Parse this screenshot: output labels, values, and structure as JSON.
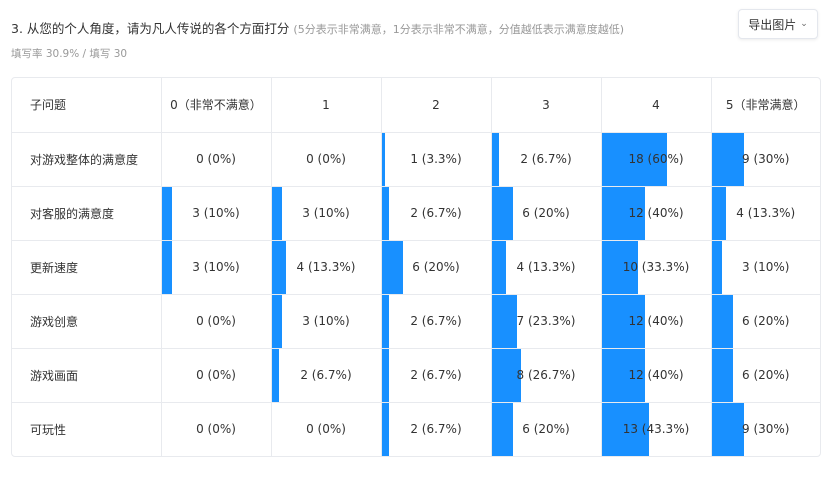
{
  "question": {
    "title": "3. 从您的个人角度，请为凡人传说的各个方面打分",
    "hint": "(5分表示非常满意，1分表示非常不满意，分值越低表示满意度越低)",
    "meta": "填写率 30.9% / 填写 30"
  },
  "export_button": {
    "label": "导出图片",
    "icon": "chevron-down-icon"
  },
  "colors": {
    "bar": "#1890ff",
    "border": "#e8eaee"
  },
  "table": {
    "header_label": "子问题",
    "columns": [
      "0（非常不满意）",
      "1",
      "2",
      "3",
      "4",
      "5（非常满意）"
    ],
    "rows": [
      {
        "label": "对游戏整体的满意度",
        "cells": [
          {
            "text": "0 (0%)",
            "pct": 0
          },
          {
            "text": "0 (0%)",
            "pct": 0
          },
          {
            "text": "1 (3.3%)",
            "pct": 3.3
          },
          {
            "text": "2 (6.7%)",
            "pct": 6.7
          },
          {
            "text": "18 (60%)",
            "pct": 60
          },
          {
            "text": "9 (30%)",
            "pct": 30
          }
        ]
      },
      {
        "label": "对客服的满意度",
        "cells": [
          {
            "text": "3 (10%)",
            "pct": 10
          },
          {
            "text": "3 (10%)",
            "pct": 10
          },
          {
            "text": "2 (6.7%)",
            "pct": 6.7
          },
          {
            "text": "6 (20%)",
            "pct": 20
          },
          {
            "text": "12 (40%)",
            "pct": 40
          },
          {
            "text": "4 (13.3%)",
            "pct": 13.3
          }
        ]
      },
      {
        "label": "更新速度",
        "cells": [
          {
            "text": "3 (10%)",
            "pct": 10
          },
          {
            "text": "4 (13.3%)",
            "pct": 13.3
          },
          {
            "text": "6 (20%)",
            "pct": 20
          },
          {
            "text": "4 (13.3%)",
            "pct": 13.3
          },
          {
            "text": "10 (33.3%)",
            "pct": 33.3
          },
          {
            "text": "3 (10%)",
            "pct": 10
          }
        ]
      },
      {
        "label": "游戏创意",
        "cells": [
          {
            "text": "0 (0%)",
            "pct": 0
          },
          {
            "text": "3 (10%)",
            "pct": 10
          },
          {
            "text": "2 (6.7%)",
            "pct": 6.7
          },
          {
            "text": "7 (23.3%)",
            "pct": 23.3
          },
          {
            "text": "12 (40%)",
            "pct": 40
          },
          {
            "text": "6 (20%)",
            "pct": 20
          }
        ]
      },
      {
        "label": "游戏画面",
        "cells": [
          {
            "text": "0 (0%)",
            "pct": 0
          },
          {
            "text": "2 (6.7%)",
            "pct": 6.7
          },
          {
            "text": "2 (6.7%)",
            "pct": 6.7
          },
          {
            "text": "8 (26.7%)",
            "pct": 26.7
          },
          {
            "text": "12 (40%)",
            "pct": 40
          },
          {
            "text": "6 (20%)",
            "pct": 20
          }
        ]
      },
      {
        "label": "可玩性",
        "cells": [
          {
            "text": "0 (0%)",
            "pct": 0
          },
          {
            "text": "0 (0%)",
            "pct": 0
          },
          {
            "text": "2 (6.7%)",
            "pct": 6.7
          },
          {
            "text": "6 (20%)",
            "pct": 20
          },
          {
            "text": "13 (43.3%)",
            "pct": 43.3
          },
          {
            "text": "9 (30%)",
            "pct": 30
          }
        ]
      }
    ]
  }
}
